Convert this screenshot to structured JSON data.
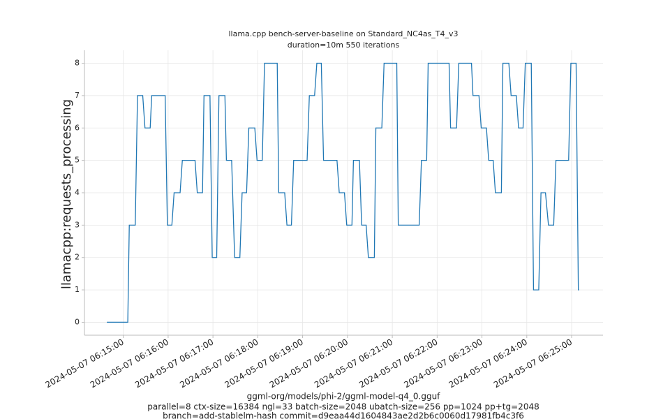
{
  "chart_data": {
    "type": "line",
    "title": "llama.cpp bench-server-baseline on Standard_NC4as_T4_v3",
    "subtitle": "duration=10m 550 iterations",
    "y_label": "llamacpp:requests_processing",
    "x_label": [
      "ggml-org/models/phi-2/ggml-model-q4_0.gguf",
      "parallel=8 ctx-size=16384 ngl=33 batch-size=2048 ubatch-size=256 pp=1024 pp+tg=2048",
      "branch=add-stablelm-hash commit=d9eaa44d1604843ae2d2b6c0060d17981fb4c3f6"
    ],
    "x": [
      "2024-05-07 06:14:38",
      "2024-05-07 06:15:06",
      "2024-05-07 06:15:08",
      "2024-05-07 06:15:16",
      "2024-05-07 06:15:19",
      "2024-05-07 06:15:26",
      "2024-05-07 06:15:29",
      "2024-05-07 06:15:36",
      "2024-05-07 06:15:38",
      "2024-05-07 06:15:56",
      "2024-05-07 06:15:59",
      "2024-05-07 06:16:05",
      "2024-05-07 06:16:08",
      "2024-05-07 06:16:16",
      "2024-05-07 06:16:19",
      "2024-05-07 06:16:36",
      "2024-05-07 06:16:39",
      "2024-05-07 06:16:46",
      "2024-05-07 06:16:48",
      "2024-05-07 06:16:56",
      "2024-05-07 06:16:59",
      "2024-05-07 06:17:05",
      "2024-05-07 06:17:08",
      "2024-05-07 06:17:16",
      "2024-05-07 06:17:18",
      "2024-05-07 06:17:25",
      "2024-05-07 06:17:29",
      "2024-05-07 06:17:36",
      "2024-05-07 06:17:39",
      "2024-05-07 06:17:45",
      "2024-05-07 06:17:48",
      "2024-05-07 06:17:56",
      "2024-05-07 06:17:59",
      "2024-05-07 06:18:06",
      "2024-05-07 06:18:09",
      "2024-05-07 06:18:26",
      "2024-05-07 06:18:28",
      "2024-05-07 06:18:36",
      "2024-05-07 06:18:39",
      "2024-05-07 06:18:45",
      "2024-05-07 06:18:48",
      "2024-05-07 06:19:06",
      "2024-05-07 06:19:09",
      "2024-05-07 06:19:16",
      "2024-05-07 06:19:19",
      "2024-05-07 06:19:25",
      "2024-05-07 06:19:28",
      "2024-05-07 06:19:46",
      "2024-05-07 06:19:49",
      "2024-05-07 06:19:56",
      "2024-05-07 06:19:59",
      "2024-05-07 06:20:06",
      "2024-05-07 06:20:08",
      "2024-05-07 06:20:16",
      "2024-05-07 06:20:19",
      "2024-05-07 06:20:25",
      "2024-05-07 06:20:28",
      "2024-05-07 06:20:36",
      "2024-05-07 06:20:38",
      "2024-05-07 06:20:46",
      "2024-05-07 06:20:49",
      "2024-05-07 06:21:06",
      "2024-05-07 06:21:08",
      "2024-05-07 06:21:36",
      "2024-05-07 06:21:39",
      "2024-05-07 06:21:46",
      "2024-05-07 06:21:48",
      "2024-05-07 06:22:16",
      "2024-05-07 06:22:18",
      "2024-05-07 06:22:26",
      "2024-05-07 06:22:29",
      "2024-05-07 06:22:46",
      "2024-05-07 06:22:48",
      "2024-05-07 06:22:56",
      "2024-05-07 06:22:59",
      "2024-05-07 06:23:06",
      "2024-05-07 06:23:09",
      "2024-05-07 06:23:15",
      "2024-05-07 06:23:18",
      "2024-05-07 06:23:26",
      "2024-05-07 06:23:28",
      "2024-05-07 06:23:36",
      "2024-05-07 06:23:39",
      "2024-05-07 06:23:46",
      "2024-05-07 06:23:49",
      "2024-05-07 06:23:55",
      "2024-05-07 06:23:58",
      "2024-05-07 06:24:06",
      "2024-05-07 06:24:09",
      "2024-05-07 06:24:16",
      "2024-05-07 06:24:19",
      "2024-05-07 06:24:25",
      "2024-05-07 06:24:29",
      "2024-05-07 06:24:36",
      "2024-05-07 06:24:39",
      "2024-05-07 06:24:56",
      "2024-05-07 06:24:59",
      "2024-05-07 06:25:06",
      "2024-05-07 06:25:09",
      "2024-05-07 06:25:10"
    ],
    "series": [
      {
        "color": "#1f77b4",
        "values": [
          0,
          0,
          3,
          3,
          7,
          7,
          6,
          6,
          7,
          7,
          3,
          3,
          4,
          4,
          5,
          5,
          4,
          4,
          7,
          7,
          2,
          2,
          7,
          7,
          5,
          5,
          2,
          2,
          4,
          4,
          6,
          6,
          5,
          5,
          8,
          8,
          4,
          4,
          3,
          3,
          5,
          5,
          7,
          7,
          8,
          8,
          5,
          5,
          4,
          4,
          3,
          3,
          5,
          5,
          3,
          3,
          2,
          2,
          6,
          6,
          8,
          8,
          3,
          3,
          5,
          5,
          8,
          8,
          6,
          6,
          8,
          8,
          7,
          7,
          6,
          6,
          5,
          5,
          4,
          4,
          8,
          8,
          7,
          7,
          6,
          6,
          8,
          8,
          1,
          1,
          4,
          4,
          3,
          3,
          5,
          5,
          8,
          8,
          1,
          1
        ]
      }
    ],
    "xlim": [
      "2024-05-07 06:14:08",
      "2024-05-07 06:25:42"
    ],
    "xticks": [
      "2024-05-07 06:15:00",
      "2024-05-07 06:16:00",
      "2024-05-07 06:17:00",
      "2024-05-07 06:18:00",
      "2024-05-07 06:19:00",
      "2024-05-07 06:20:00",
      "2024-05-07 06:21:00",
      "2024-05-07 06:22:00",
      "2024-05-07 06:23:00",
      "2024-05-07 06:24:00",
      "2024-05-07 06:25:00"
    ],
    "ylim": [
      -0.4,
      8.4
    ],
    "yticks": [
      0,
      1,
      2,
      3,
      4,
      5,
      6,
      7,
      8
    ],
    "grid": true
  }
}
